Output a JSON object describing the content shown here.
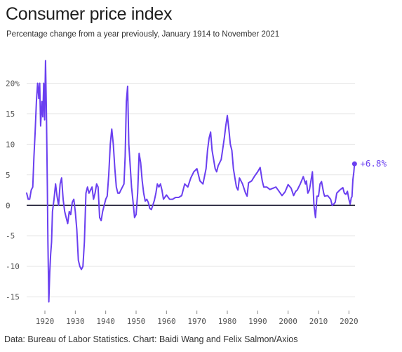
{
  "header": {
    "title": "Consumer price index",
    "subtitle": "Percentage change from a year previously, January 1914 to November 2021"
  },
  "footer": {
    "source": "Data: Bureau of Labor Statistics. Chart: Baidi Wang and Felix Salmon/Axios"
  },
  "colors": {
    "series": "#6a3ff0",
    "zero_line": "#24233a",
    "grid": "#e7e7e7"
  },
  "chart_data": {
    "type": "line",
    "title": "Consumer price index",
    "subtitle": "Percentage change from a year previously, January 1914 to November 2021",
    "xlabel": "",
    "ylabel": "",
    "xlim": [
      1914,
      2022
    ],
    "ylim": [
      -17,
      25
    ],
    "grid": true,
    "x_ticks": [
      1920,
      1930,
      1940,
      1950,
      1960,
      1970,
      1980,
      1990,
      2000,
      2010,
      2020
    ],
    "x_tick_labels": [
      "1920",
      "1930",
      "1940",
      "1950",
      "1960",
      "1970",
      "1980",
      "1990",
      "2000",
      "2010",
      "2020"
    ],
    "y_ticks": [
      20,
      15,
      10,
      5,
      0,
      -5,
      -10,
      -15
    ],
    "y_tick_labels": [
      "20%",
      "15",
      "10",
      "5",
      "0",
      "-5",
      "-10",
      "-15"
    ],
    "annotation": {
      "x": 2021.85,
      "y": 6.8,
      "label": "+6.8%"
    },
    "series": [
      {
        "x": [
          1914.0,
          1914.5,
          1915.0,
          1915.5,
          1916.0,
          1916.4,
          1916.8,
          1917.2,
          1917.6,
          1917.8,
          1918.0,
          1918.3,
          1918.6,
          1919.0,
          1919.3,
          1919.6,
          1919.9,
          1920.2,
          1920.5,
          1920.8,
          1921.0,
          1921.3,
          1921.6,
          1921.9,
          1922.2,
          1922.5,
          1923.0,
          1923.5,
          1924.0,
          1924.5,
          1925.0,
          1925.5,
          1926.0,
          1926.5,
          1927.0,
          1927.5,
          1928.0,
          1928.5,
          1929.0,
          1929.5,
          1930.0,
          1930.5,
          1931.0,
          1931.5,
          1932.0,
          1932.5,
          1933.0,
          1933.5,
          1934.0,
          1934.5,
          1935.0,
          1935.5,
          1936.0,
          1936.5,
          1937.0,
          1937.5,
          1938.0,
          1938.5,
          1939.0,
          1939.5,
          1940.0,
          1940.5,
          1941.0,
          1941.5,
          1942.0,
          1942.5,
          1943.0,
          1943.5,
          1944.0,
          1944.5,
          1945.0,
          1945.5,
          1946.0,
          1946.4,
          1946.8,
          1947.2,
          1947.6,
          1948.0,
          1948.5,
          1949.0,
          1949.5,
          1950.0,
          1950.5,
          1951.0,
          1951.5,
          1952.0,
          1952.5,
          1953.0,
          1953.5,
          1954.0,
          1954.5,
          1955.0,
          1955.5,
          1956.0,
          1956.5,
          1957.0,
          1957.5,
          1958.0,
          1958.5,
          1959.0,
          1960.0,
          1961.0,
          1962.0,
          1963.0,
          1964.0,
          1965.0,
          1966.0,
          1967.0,
          1968.0,
          1969.0,
          1970.0,
          1971.0,
          1972.0,
          1973.0,
          1973.5,
          1974.0,
          1974.5,
          1975.0,
          1975.5,
          1976.0,
          1976.5,
          1977.0,
          1978.0,
          1979.0,
          1979.5,
          1980.0,
          1980.5,
          1981.0,
          1981.5,
          1982.0,
          1982.5,
          1983.0,
          1983.5,
          1984.0,
          1985.0,
          1986.0,
          1986.5,
          1987.0,
          1988.0,
          1989.0,
          1990.0,
          1990.8,
          1991.5,
          1992.0,
          1993.0,
          1994.0,
          1995.0,
          1996.0,
          1997.0,
          1998.0,
          1999.0,
          2000.0,
          2001.0,
          2001.8,
          2002.5,
          2003.0,
          2004.0,
          2005.0,
          2005.7,
          2006.0,
          2006.5,
          2007.0,
          2007.5,
          2008.0,
          2008.5,
          2009.0,
          2009.5,
          2010.0,
          2010.5,
          2011.0,
          2011.7,
          2012.0,
          2013.0,
          2014.0,
          2014.5,
          2015.0,
          2015.5,
          2016.0,
          2017.0,
          2018.0,
          2018.5,
          2019.0,
          2019.5,
          2020.0,
          2020.4,
          2020.8,
          2021.0,
          2021.3,
          2021.6,
          2021.85
        ],
        "values": [
          2.0,
          1.0,
          1.0,
          2.5,
          3.0,
          8.0,
          12.0,
          17.0,
          20.0,
          19.0,
          17.5,
          20.0,
          13.0,
          17.0,
          14.5,
          20.0,
          14.0,
          23.7,
          15.0,
          3.0,
          -6.0,
          -15.8,
          -11.0,
          -8.0,
          -6.0,
          -1.0,
          1.0,
          3.5,
          1.5,
          0.0,
          3.5,
          4.5,
          1.0,
          -1.0,
          -2.0,
          -3.0,
          -1.0,
          -1.5,
          0.5,
          1.0,
          -1.0,
          -4.0,
          -9.0,
          -10.0,
          -10.5,
          -10.0,
          -6.0,
          2.0,
          3.0,
          2.0,
          2.5,
          3.0,
          1.0,
          2.0,
          3.5,
          3.0,
          -2.0,
          -2.5,
          -1.0,
          0.0,
          1.0,
          1.5,
          5.0,
          10.0,
          12.5,
          10.0,
          6.0,
          3.0,
          2.0,
          2.0,
          2.5,
          3.0,
          3.5,
          8.0,
          17.0,
          19.5,
          10.0,
          7.0,
          3.0,
          0.5,
          -2.0,
          -1.5,
          2.0,
          8.5,
          7.0,
          4.0,
          2.0,
          0.7,
          1.0,
          0.5,
          -0.5,
          -0.7,
          0.0,
          0.8,
          2.0,
          3.5,
          3.0,
          3.5,
          2.5,
          1.0,
          1.7,
          1.0,
          1.0,
          1.3,
          1.3,
          1.6,
          3.5,
          3.0,
          4.5,
          5.5,
          6.0,
          4.0,
          3.5,
          6.0,
          9.0,
          11.0,
          12.0,
          9.0,
          7.5,
          6.0,
          5.5,
          6.5,
          7.5,
          11.0,
          13.0,
          14.7,
          12.5,
          10.0,
          9.0,
          6.0,
          4.5,
          3.0,
          2.5,
          4.5,
          3.5,
          2.0,
          1.5,
          3.7,
          4.0,
          4.8,
          5.5,
          6.2,
          4.0,
          3.0,
          3.0,
          2.6,
          2.8,
          3.0,
          2.3,
          1.6,
          2.2,
          3.4,
          2.8,
          1.6,
          2.3,
          2.5,
          3.5,
          4.7,
          3.5,
          4.0,
          2.0,
          2.5,
          4.0,
          5.5,
          0.0,
          -2.0,
          1.5,
          1.5,
          3.5,
          3.9,
          2.0,
          1.5,
          1.6,
          1.0,
          0.0,
          0.2,
          0.5,
          2.0,
          2.5,
          2.9,
          2.0,
          1.8,
          2.3,
          1.0,
          0.2,
          1.3,
          1.4,
          4.2,
          5.4,
          6.8
        ]
      }
    ]
  }
}
